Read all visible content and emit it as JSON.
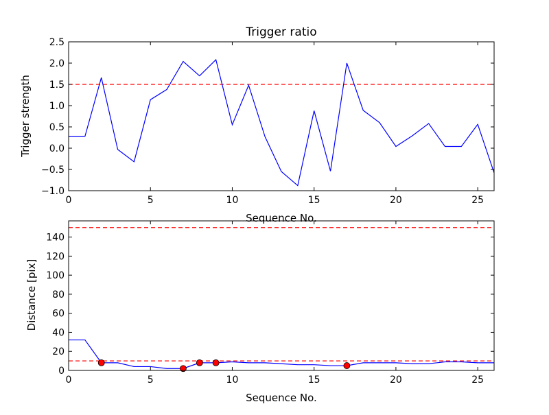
{
  "chart_data": [
    {
      "type": "line",
      "title": "Trigger ratio",
      "xlabel": "Sequence No.",
      "ylabel": "Trigger strength",
      "xlim": [
        0,
        26
      ],
      "ylim": [
        -1.0,
        2.5
      ],
      "xticks": [
        0,
        5,
        10,
        15,
        20,
        25
      ],
      "xtick_labels": [
        "0",
        "5",
        "10",
        "15",
        "20",
        "25"
      ],
      "yticks": [
        -1.0,
        -0.5,
        0.0,
        0.5,
        1.0,
        1.5,
        2.0,
        2.5
      ],
      "ytick_labels": [
        "−1.0",
        "−0.5",
        "0.0",
        "0.5",
        "1.0",
        "1.5",
        "2.0",
        "2.5"
      ],
      "grid": false,
      "series": [
        {
          "color": "#0000ff",
          "x": [
            0,
            1,
            2,
            3,
            4,
            5,
            6,
            7,
            8,
            9,
            10,
            11,
            12,
            13,
            14,
            15,
            16,
            17,
            18,
            19,
            20,
            21,
            22,
            23,
            24,
            25,
            26
          ],
          "y": [
            0.28,
            0.28,
            1.66,
            -0.03,
            -0.32,
            1.14,
            1.38,
            2.04,
            1.7,
            2.08,
            0.55,
            1.48,
            0.27,
            -0.55,
            -0.88,
            0.88,
            -0.54,
            2.0,
            0.89,
            0.6,
            0.04,
            0.29,
            0.58,
            0.04,
            0.04,
            0.56,
            -0.58
          ]
        }
      ],
      "reference_lines": [
        {
          "y": 1.5,
          "color": "#ff0000",
          "style": "dashed"
        }
      ]
    },
    {
      "type": "line",
      "title": "",
      "xlabel": "Sequence No.",
      "ylabel": "Distance [pix]",
      "xlim": [
        0,
        26
      ],
      "ylim": [
        0,
        157
      ],
      "xticks": [
        0,
        5,
        10,
        15,
        20,
        25
      ],
      "xtick_labels": [
        "0",
        "5",
        "10",
        "15",
        "20",
        "25"
      ],
      "yticks": [
        0,
        20,
        40,
        60,
        80,
        100,
        120,
        140
      ],
      "ytick_labels": [
        "0",
        "20",
        "40",
        "60",
        "80",
        "100",
        "120",
        "140"
      ],
      "grid": false,
      "series": [
        {
          "color": "#0000ff",
          "x": [
            0,
            1,
            2,
            3,
            4,
            5,
            6,
            7,
            8,
            9,
            10,
            11,
            12,
            13,
            14,
            15,
            16,
            17,
            18,
            19,
            20,
            21,
            22,
            23,
            24,
            25,
            26
          ],
          "y": [
            32,
            32,
            8,
            8,
            4,
            4,
            2,
            2,
            8,
            8,
            9,
            8,
            8,
            7,
            6,
            6,
            5,
            5,
            8,
            8,
            8,
            7,
            7,
            9,
            9,
            8,
            8
          ]
        }
      ],
      "markers": {
        "color": "#ff0000",
        "x": [
          2,
          7,
          8,
          9,
          17
        ],
        "y": [
          8,
          2,
          8,
          8,
          5
        ]
      },
      "reference_lines": [
        {
          "y": 150,
          "color": "#ff0000",
          "style": "dashed"
        },
        {
          "y": 10,
          "color": "#ff0000",
          "style": "dashed"
        }
      ]
    }
  ]
}
